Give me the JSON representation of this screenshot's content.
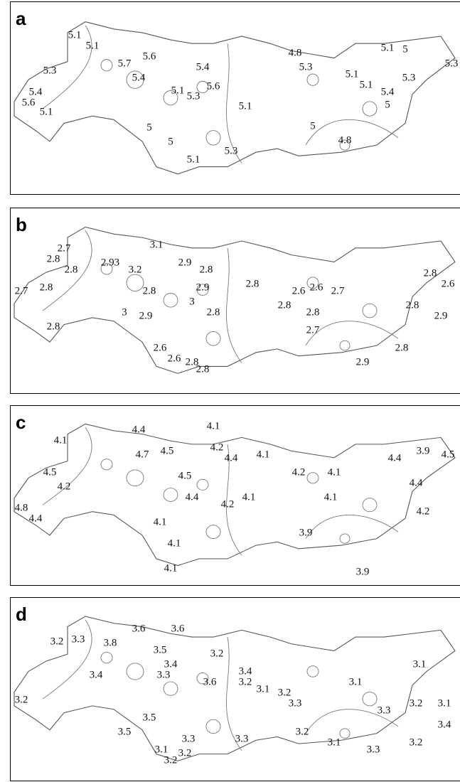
{
  "panels": [
    {
      "label": "a",
      "contour_labels": [
        "5.1",
        "5.1",
        "5.3",
        "5.7",
        "5.6",
        "5.4",
        "5.4",
        "5.6",
        "5.1",
        "5.1",
        "5.4",
        "5.6",
        "5.3",
        "4.8",
        "5.3",
        "5.1",
        "5.1",
        "5.1",
        "5",
        "5.3",
        "5.3",
        "5.4",
        "5",
        "5.1",
        "5",
        "4.8",
        "5",
        "5",
        "5.1",
        "5.3"
      ]
    },
    {
      "label": "b",
      "contour_labels": [
        "2.7",
        "2.8",
        "2.8",
        "2.8",
        "2.7",
        "2.8",
        "3.1",
        "2.93",
        "3.2",
        "2.9",
        "2.8",
        "2.8",
        "2.9",
        "3",
        "2.8",
        "2.8",
        "3",
        "2.9",
        "2.6",
        "2.6",
        "2.8",
        "2.8",
        "2.6",
        "2.6",
        "2.7",
        "2.8",
        "2.8",
        "2.7",
        "2.8",
        "2.6",
        "2.8",
        "2.9",
        "2.8",
        "2.9"
      ]
    },
    {
      "label": "c",
      "contour_labels": [
        "4.4",
        "4.1",
        "4.2",
        "4.4",
        "4.1",
        "4.7",
        "4.5",
        "4.1",
        "4.5",
        "4.2",
        "4.8",
        "4.4",
        "4.5",
        "4.4",
        "4.2",
        "4.1",
        "4.2",
        "4.1",
        "4.1",
        "4.4",
        "3.9",
        "4.5",
        "4.4",
        "4.2",
        "3.9",
        "3.9",
        "4.1",
        "4.1",
        "4.1"
      ]
    },
    {
      "label": "d",
      "contour_labels": [
        "3.2",
        "3.3",
        "3.6",
        "3.8",
        "3.6",
        "3.5",
        "3.4",
        "3.2",
        "3.3",
        "3.6",
        "3.4",
        "3.2",
        "3.4",
        "3.2",
        "3.1",
        "3.2",
        "3.1",
        "3.3",
        "3.3",
        "3.2",
        "3.1",
        "3.4",
        "3.1",
        "3.5",
        "3.5",
        "3.1",
        "3.2",
        "3.2",
        "3.3",
        "3.3",
        "3.2",
        "3.1",
        "3.3",
        "3.2"
      ]
    }
  ]
}
